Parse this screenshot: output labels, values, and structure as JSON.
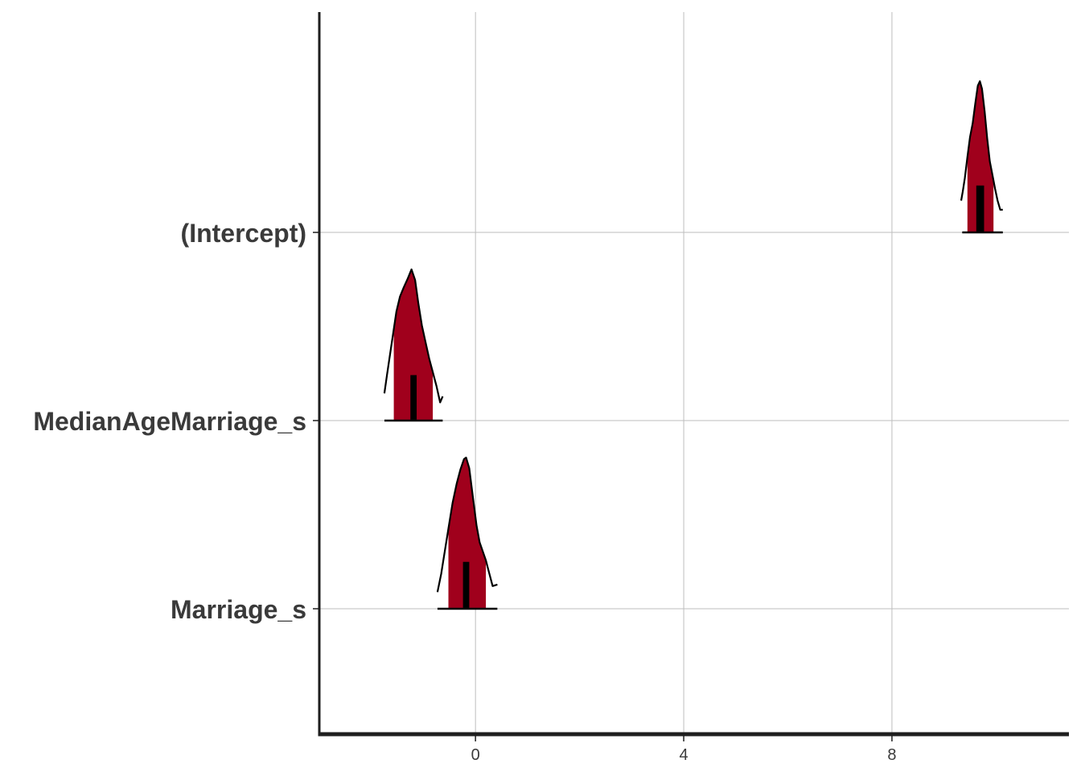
{
  "chart_data": {
    "type": "area",
    "title": "",
    "xlabel": "",
    "ylabel": "",
    "xlim": [
      -3,
      11.4
    ],
    "x_ticks": [
      0,
      4,
      8
    ],
    "grid": true,
    "colors": {
      "fill": "#a0001c",
      "outline": "#000000",
      "grid": "#bdbdbd",
      "axis": "#1e1e1e",
      "label": "#3a3a3a"
    },
    "parameters": [
      {
        "label": "(Intercept)",
        "median": 9.69,
        "inner_interval": [
          9.62,
          9.77
        ],
        "interval_50": [
          9.45,
          9.95
        ],
        "interval_90": [
          9.35,
          10.13
        ],
        "density_x": [
          9.33,
          9.36,
          9.4,
          9.45,
          9.5,
          9.55,
          9.6,
          9.65,
          9.69,
          9.73,
          9.78,
          9.83,
          9.88,
          9.93,
          9.98,
          10.03,
          10.08,
          10.13
        ],
        "density_y": [
          0.21,
          0.27,
          0.36,
          0.5,
          0.63,
          0.72,
          0.85,
          0.97,
          1.0,
          0.95,
          0.8,
          0.62,
          0.47,
          0.38,
          0.29,
          0.21,
          0.15,
          0.15
        ]
      },
      {
        "label": "MedianAgeMarriage_s",
        "median": -1.2,
        "inner_interval": [
          -1.25,
          -1.13
        ],
        "interval_50": [
          -1.57,
          -0.82
        ],
        "interval_90": [
          -1.75,
          -0.63
        ],
        "density_x": [
          -1.75,
          -1.7,
          -1.64,
          -1.58,
          -1.52,
          -1.45,
          -1.38,
          -1.3,
          -1.23,
          -1.16,
          -1.1,
          -1.03,
          -0.96,
          -0.89,
          -0.82,
          -0.75,
          -0.68,
          -0.63
        ],
        "density_y": [
          0.18,
          0.3,
          0.44,
          0.58,
          0.72,
          0.82,
          0.88,
          0.94,
          1.0,
          0.93,
          0.78,
          0.63,
          0.52,
          0.41,
          0.32,
          0.23,
          0.12,
          0.16
        ]
      },
      {
        "label": "Marriage_s",
        "median": -0.18,
        "inner_interval": [
          -0.24,
          -0.12
        ],
        "interval_50": [
          -0.52,
          0.2
        ],
        "interval_90": [
          -0.73,
          0.42
        ],
        "density_x": [
          -0.73,
          -0.66,
          -0.59,
          -0.52,
          -0.44,
          -0.36,
          -0.29,
          -0.22,
          -0.18,
          -0.12,
          -0.05,
          0.02,
          0.08,
          0.14,
          0.2,
          0.26,
          0.33,
          0.42
        ],
        "density_y": [
          0.11,
          0.23,
          0.38,
          0.53,
          0.7,
          0.83,
          0.92,
          0.99,
          1.0,
          0.93,
          0.74,
          0.55,
          0.44,
          0.38,
          0.32,
          0.24,
          0.15,
          0.16
        ]
      }
    ]
  }
}
